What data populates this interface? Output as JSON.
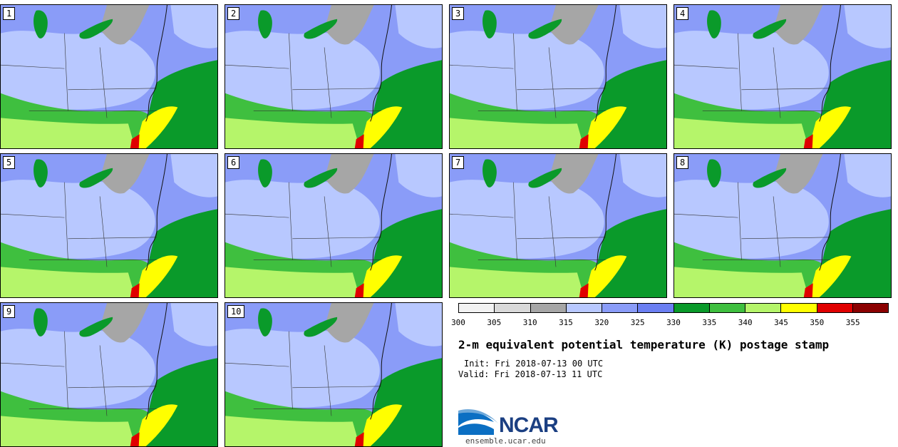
{
  "panels": [
    {
      "label": "1"
    },
    {
      "label": "2"
    },
    {
      "label": "3"
    },
    {
      "label": "4"
    },
    {
      "label": "5"
    },
    {
      "label": "6"
    },
    {
      "label": "7"
    },
    {
      "label": "8"
    },
    {
      "label": "9"
    },
    {
      "label": "10"
    }
  ],
  "colorbar": {
    "ticks": [
      "300",
      "305",
      "310",
      "315",
      "320",
      "325",
      "330",
      "335",
      "340",
      "345",
      "350",
      "355"
    ],
    "colors": [
      "#f2f2f2",
      "#d9d9d9",
      "#a6a6a6",
      "#b8c8ff",
      "#8a9cf8",
      "#6b7ff2",
      "#0a9a2a",
      "#3fbf3f",
      "#b5f56a",
      "#ffff00",
      "#e00000",
      "#8b0000"
    ]
  },
  "title": "2-m equivalent potential temperature (K) postage stamp",
  "init": "Init: Fri 2018-07-13 00 UTC",
  "valid": "Valid: Fri 2018-07-13 11 UTC",
  "logo": {
    "text": "NCAR",
    "url": "ensemble.ucar.edu"
  }
}
